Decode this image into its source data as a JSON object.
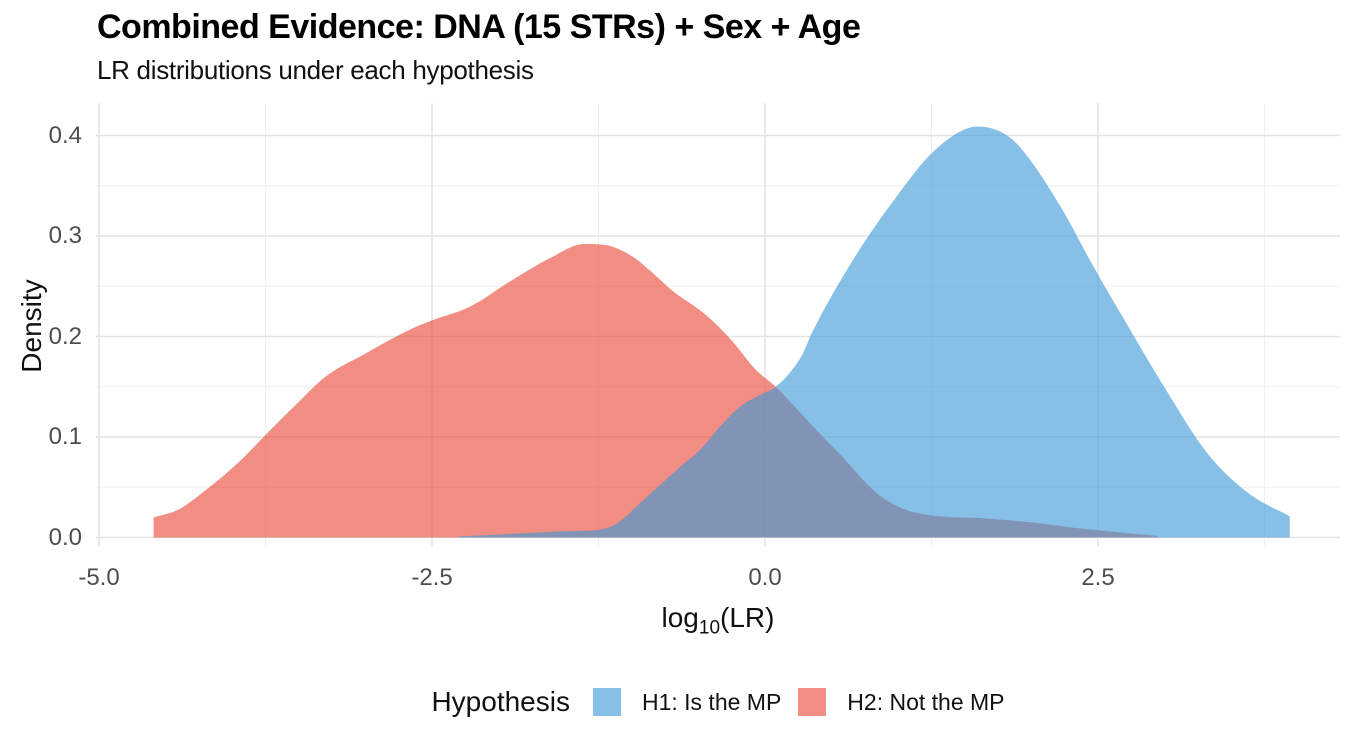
{
  "chart_data": {
    "type": "area",
    "title": "Combined Evidence: DNA (15 STRs) + Sex + Age",
    "subtitle": "LR distributions under each hypothesis",
    "x_axis": {
      "label_prefix": "log",
      "label_subscript": "10",
      "label_suffix": "(LR)",
      "ticks": [
        {
          "value": -5.0,
          "label": "-5.0"
        },
        {
          "value": -2.5,
          "label": "-2.5"
        },
        {
          "value": 0.0,
          "label": "0.0"
        },
        {
          "value": 2.5,
          "label": "2.5"
        }
      ],
      "minor_ticks": [
        -3.75,
        -1.25,
        1.25,
        3.75
      ],
      "range": [
        -5.02,
        4.32
      ]
    },
    "y_axis": {
      "label": "Density",
      "ticks": [
        {
          "value": 0.0,
          "label": "0.0"
        },
        {
          "value": 0.1,
          "label": "0.1"
        },
        {
          "value": 0.2,
          "label": "0.2"
        },
        {
          "value": 0.3,
          "label": "0.3"
        },
        {
          "value": 0.4,
          "label": "0.4"
        }
      ],
      "minor_ticks": [
        0.05,
        0.15,
        0.25,
        0.35
      ],
      "range": [
        0,
        0.4325
      ]
    },
    "legend": {
      "title": "Hypothesis"
    },
    "series": [
      {
        "id": "H1",
        "label": "H1: Is the MP",
        "color": "#3E9AD6",
        "fill_opacity": 0.62,
        "points": [
          [
            -2.3,
            0.001
          ],
          [
            -2.0,
            0.003
          ],
          [
            -1.7,
            0.005
          ],
          [
            -1.45,
            0.0065
          ],
          [
            -1.25,
            0.0075
          ],
          [
            -1.1,
            0.015
          ],
          [
            -0.94,
            0.034
          ],
          [
            -0.79,
            0.052
          ],
          [
            -0.64,
            0.07
          ],
          [
            -0.49,
            0.087
          ],
          [
            -0.34,
            0.11
          ],
          [
            -0.19,
            0.13
          ],
          [
            -0.05,
            0.141
          ],
          [
            0.08,
            0.15
          ],
          [
            0.18,
            0.163
          ],
          [
            0.28,
            0.182
          ],
          [
            0.35,
            0.203
          ],
          [
            0.66,
            0.276
          ],
          [
            0.97,
            0.336
          ],
          [
            1.28,
            0.386
          ],
          [
            1.6,
            0.409
          ],
          [
            1.78,
            0.403
          ],
          [
            1.91,
            0.389
          ],
          [
            2.22,
            0.329
          ],
          [
            2.46,
            0.271
          ],
          [
            2.7,
            0.216
          ],
          [
            3.01,
            0.147
          ],
          [
            3.32,
            0.084
          ],
          [
            3.63,
            0.044
          ],
          [
            3.94,
            0.021
          ]
        ]
      },
      {
        "id": "H2",
        "label": "H2: Not the MP",
        "color": "#E84735",
        "fill_opacity": 0.62,
        "points": [
          [
            -4.59,
            0.02
          ],
          [
            -4.4,
            0.028
          ],
          [
            -4.2,
            0.047
          ],
          [
            -3.95,
            0.075
          ],
          [
            -3.75,
            0.102
          ],
          [
            -3.5,
            0.135
          ],
          [
            -3.3,
            0.16
          ],
          [
            -3.0,
            0.183
          ],
          [
            -2.68,
            0.206
          ],
          [
            -2.5,
            0.216
          ],
          [
            -2.21,
            0.23
          ],
          [
            -1.9,
            0.256
          ],
          [
            -1.6,
            0.279
          ],
          [
            -1.36,
            0.292
          ],
          [
            -1.2,
            0.291
          ],
          [
            -1.0,
            0.28
          ],
          [
            -0.85,
            0.264
          ],
          [
            -0.7,
            0.246
          ],
          [
            -0.44,
            0.221
          ],
          [
            -0.25,
            0.196
          ],
          [
            -0.07,
            0.167
          ],
          [
            0.08,
            0.15
          ],
          [
            0.35,
            0.112
          ],
          [
            0.555,
            0.084
          ],
          [
            0.84,
            0.044
          ],
          [
            1.05,
            0.028
          ],
          [
            1.25,
            0.022
          ],
          [
            1.65,
            0.019
          ],
          [
            2.0,
            0.015
          ],
          [
            2.3,
            0.01
          ],
          [
            2.6,
            0.006
          ],
          [
            2.95,
            0.0015
          ]
        ]
      }
    ],
    "draw_order": [
      "H2",
      "H1"
    ],
    "grid": {
      "major_color": "#E4E4E4",
      "minor_color": "#F0F0F0",
      "background": "#FFFFFF"
    },
    "text_colors": {
      "tick": "#4D4D4D",
      "axis_title": "#111111",
      "title": "#000000"
    }
  }
}
